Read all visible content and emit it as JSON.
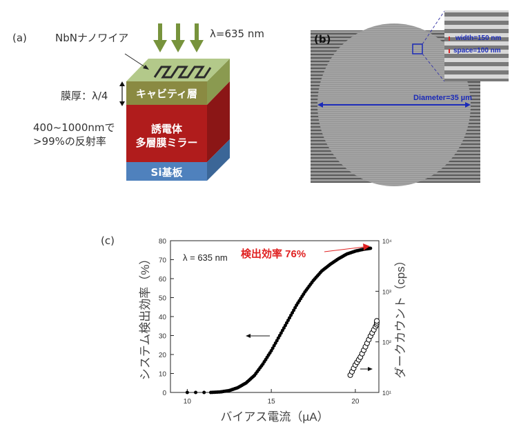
{
  "panel_a": {
    "label": "(a)",
    "nanowire_label": "NbNナノワイア",
    "wavelength_label": "λ=635 nm",
    "thickness_label": "膜厚：λ/4",
    "cavity_label": "キャビティ層",
    "reflect_line1": "400~1000nmで",
    "reflect_line2": ">99%の反射率",
    "mirror_line1": "誘電体",
    "mirror_line2": "多層膜ミラー",
    "substrate_label": "Si基板",
    "colors": {
      "arrow": "#77933c",
      "top": "#9bbb59",
      "cavity": "#8a7a3a",
      "mirror": "#b01c1c",
      "substrate": "#4f81bd"
    }
  },
  "panel_b": {
    "label": "(b)",
    "width_label": "width=150 nm",
    "space_label": "space=100 nm",
    "diameter_label": "Diameter=35 µm",
    "colors": {
      "annotation": "#1a2ab8",
      "marker": "#e02020"
    }
  },
  "panel_c": {
    "label": "(c)",
    "annotation_wavelength": "λ = 635 nm",
    "annotation_efficiency": "検出効率 76%"
  },
  "chart_data": {
    "type": "scatter",
    "xlabel": "バイアス電流（µA）",
    "ylabel": "システム検出効率（%）",
    "y2label": "ダークカウント（cps）",
    "xlim": [
      9,
      21.4
    ],
    "ylim": [
      0,
      80
    ],
    "y2lim": [
      10,
      10000
    ],
    "y2scale": "log",
    "xticks": [
      "10",
      "15",
      "20"
    ],
    "yticks": [
      "0",
      "10",
      "20",
      "30",
      "40",
      "50",
      "60",
      "70",
      "80"
    ],
    "y2ticks": [
      "10¹",
      "10²",
      "10³",
      "10⁴"
    ],
    "grid": false,
    "series": [
      {
        "axis": "left",
        "marker": "filled",
        "color": "#000000",
        "x": [
          10,
          10.5,
          11,
          11.4,
          12,
          12.5,
          13,
          13.5,
          14,
          14.5,
          15,
          15.5,
          16,
          16.5,
          17,
          17.5,
          18,
          18.5,
          19,
          19.5,
          20,
          20.5,
          20.9
        ],
        "y": [
          0,
          0,
          0,
          0,
          0.3,
          1,
          2.5,
          5,
          9,
          15,
          22,
          30,
          38,
          46,
          53,
          59,
          64,
          67.5,
          70.5,
          73,
          74.5,
          75.5,
          76
        ]
      },
      {
        "axis": "right",
        "marker": "open-circle",
        "color": "#000000",
        "x": [
          19.7,
          20,
          20.3,
          20.6,
          20.9,
          21.2,
          21.4
        ],
        "y": [
          22,
          35,
          50,
          80,
          130,
          200,
          260
        ]
      }
    ]
  }
}
